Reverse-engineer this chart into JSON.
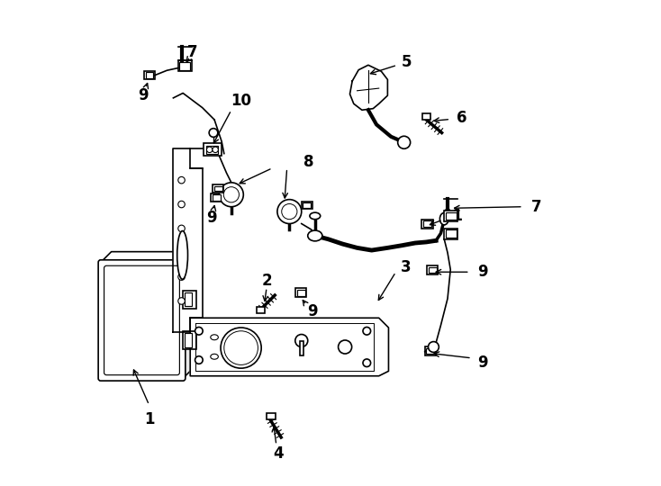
{
  "title": "",
  "bg_color": "#ffffff",
  "line_color": "#000000",
  "label_color": "#000000",
  "fig_width": 7.34,
  "fig_height": 5.4,
  "dpi": 100
}
